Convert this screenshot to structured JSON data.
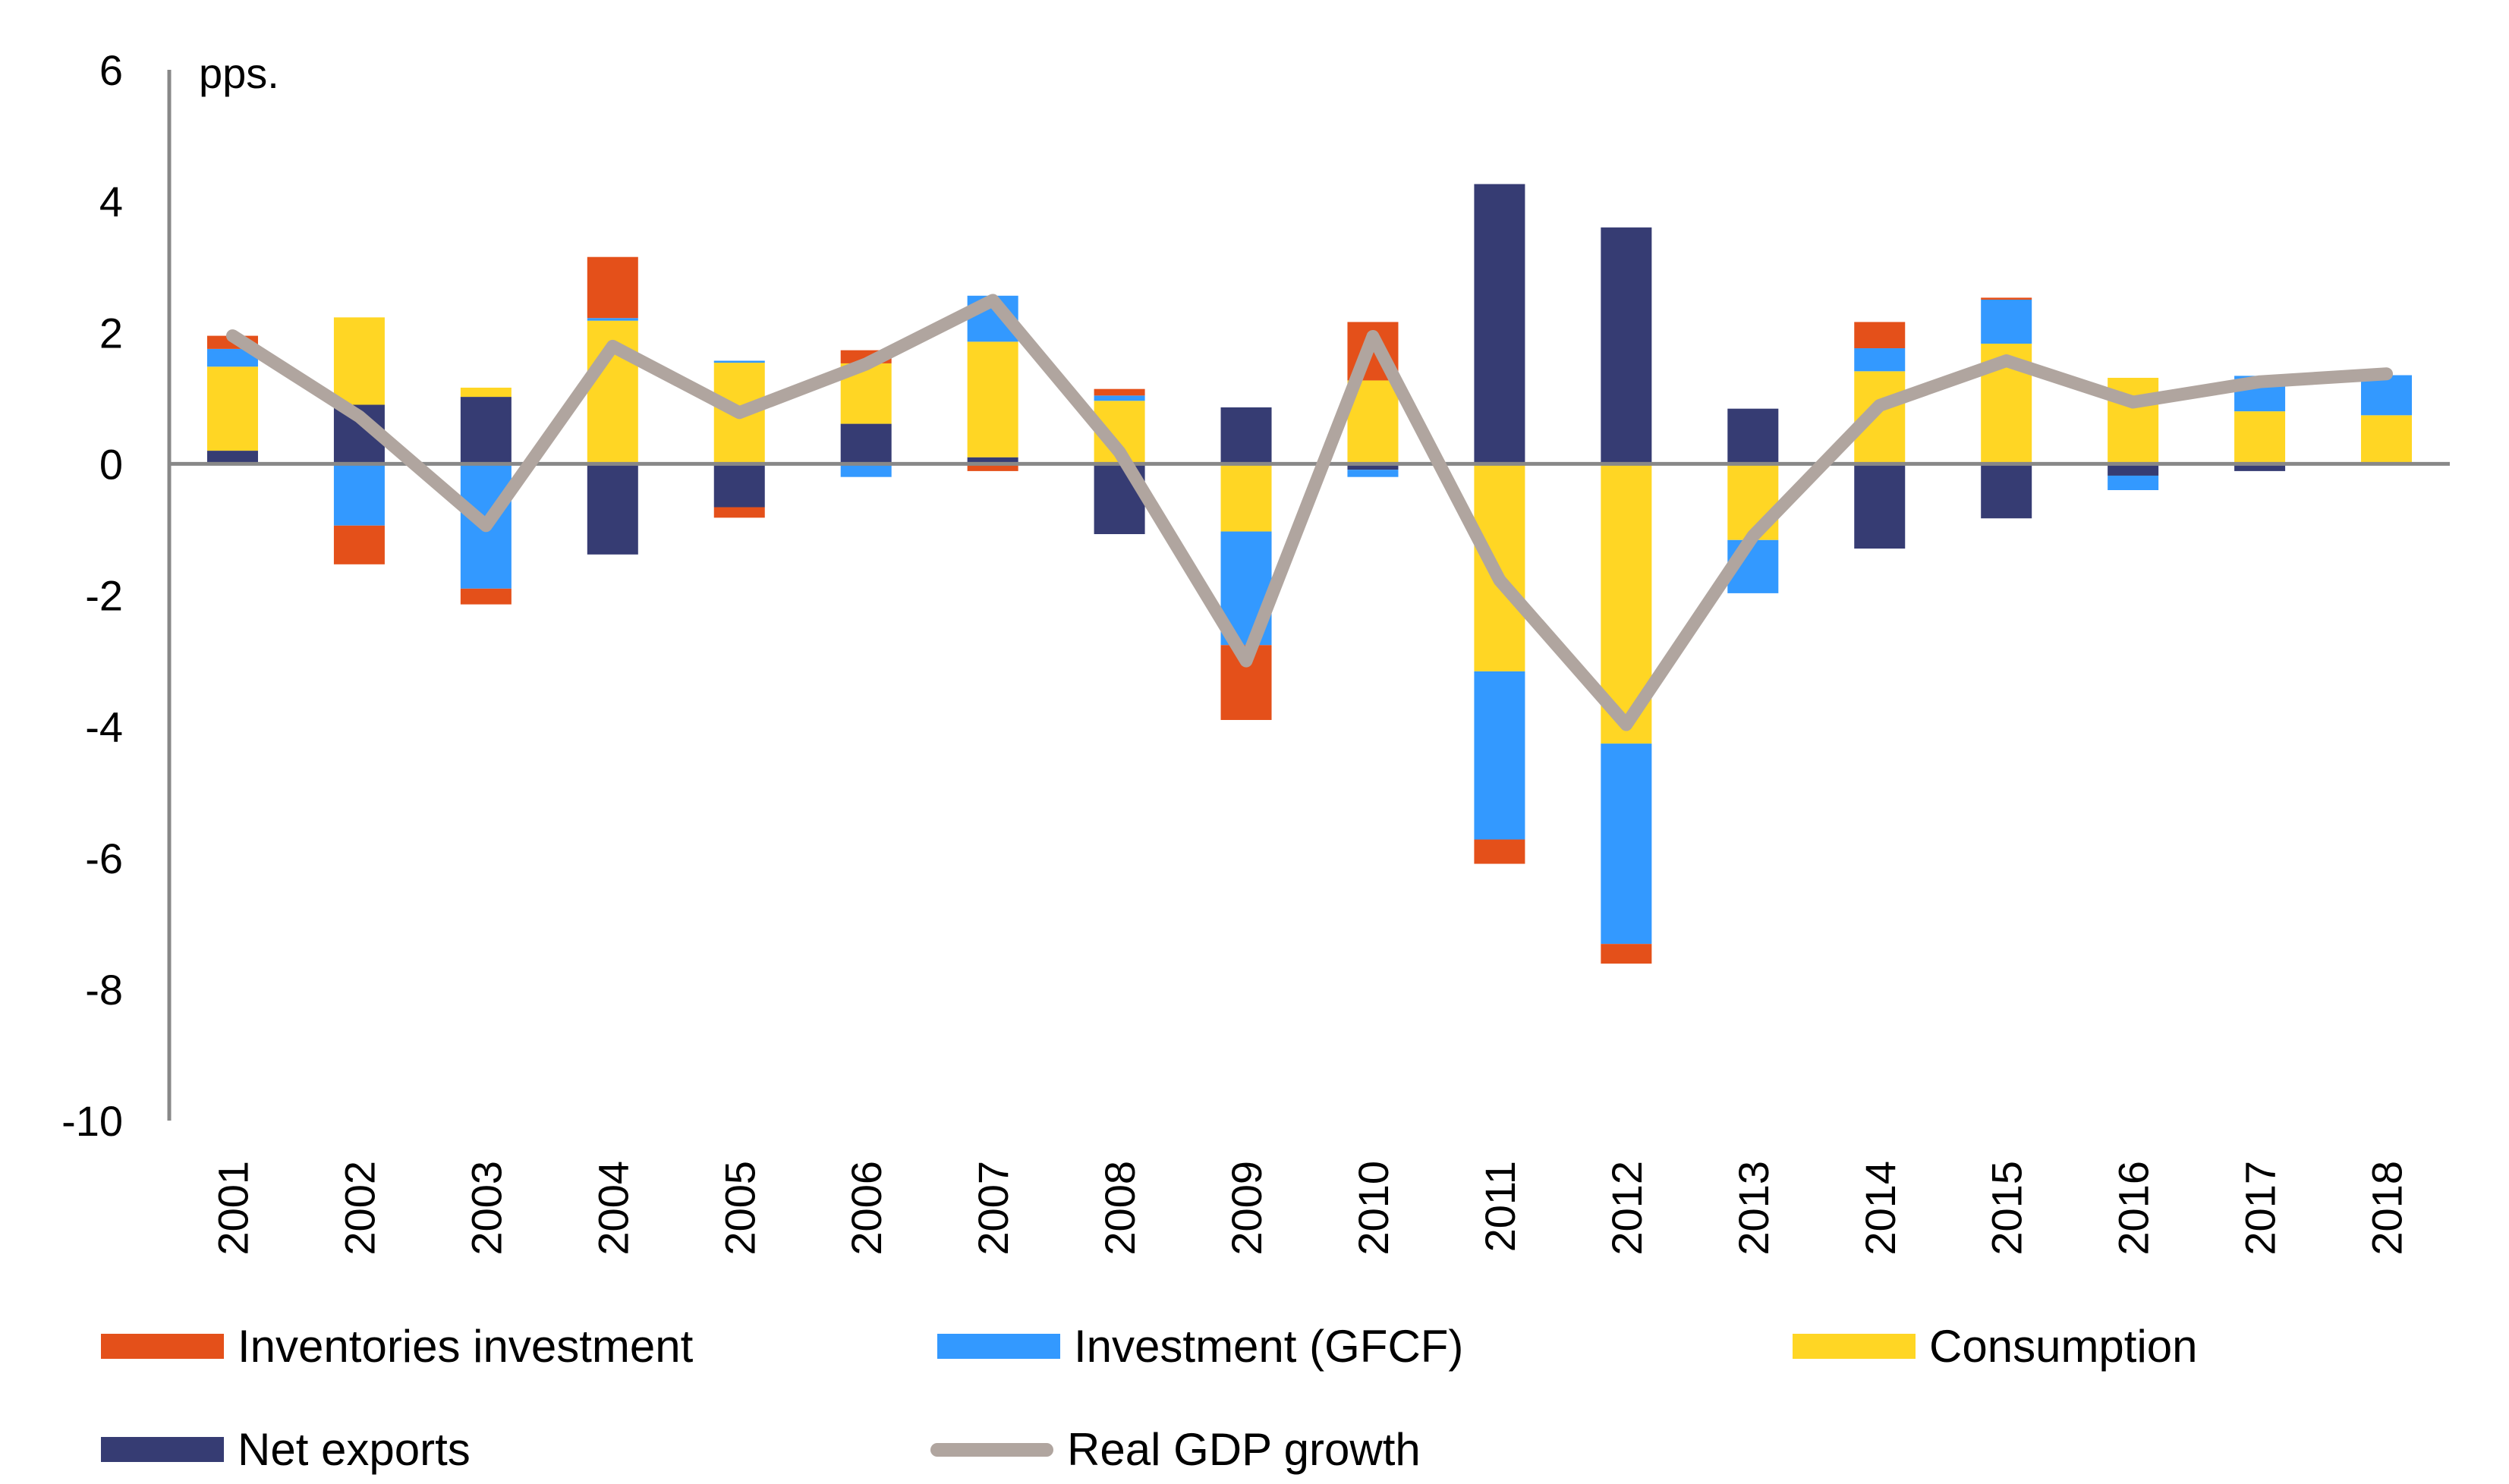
{
  "chart_data": {
    "type": "bar",
    "subtype": "stacked-bar-with-line",
    "title": "",
    "ylabel": "pps.",
    "xlabel": "",
    "ylim": [
      -10,
      6
    ],
    "yticks": [
      6,
      4,
      2,
      0,
      -2,
      -4,
      -6,
      -8,
      -10
    ],
    "grid": false,
    "legend_position": "bottom",
    "categories": [
      "2001",
      "2002",
      "2003",
      "2004",
      "2005",
      "2006",
      "2007",
      "2008",
      "2009",
      "2010",
      "2011",
      "2012",
      "2013",
      "2014",
      "2015",
      "2016",
      "2017",
      "2018"
    ],
    "series": [
      {
        "name": "Inventories investment",
        "kind": "bar",
        "color": "#E4501A",
        "values": [
          0.2,
          -0.59,
          -0.24,
          0.93,
          -0.16,
          0.2,
          -0.11,
          0.1,
          -1.14,
          0.89,
          -0.37,
          -0.3,
          0.0,
          0.4,
          0.03,
          0.0,
          0.0,
          0.0
        ]
      },
      {
        "name": "Investment (GFCF)",
        "kind": "bar",
        "color": "#3399FF",
        "values": [
          0.27,
          -0.94,
          -1.9,
          0.04,
          0.03,
          -0.2,
          0.7,
          0.08,
          -1.73,
          -0.11,
          -2.56,
          -3.05,
          -0.81,
          0.35,
          0.67,
          -0.22,
          0.54,
          0.61
        ]
      },
      {
        "name": "Consumption",
        "kind": "bar",
        "color": "#FFD624",
        "values": [
          1.28,
          1.33,
          0.14,
          2.18,
          1.54,
          0.92,
          1.76,
          0.96,
          -1.03,
          1.27,
          -3.16,
          -4.26,
          -1.16,
          1.41,
          1.83,
          1.31,
          0.8,
          0.74
        ]
      },
      {
        "name": "Net exports",
        "kind": "bar",
        "color": "#363C73",
        "values": [
          0.2,
          0.9,
          1.02,
          -1.38,
          -0.66,
          0.61,
          0.1,
          -1.07,
          0.86,
          -0.09,
          4.26,
          3.6,
          0.84,
          -1.29,
          -0.83,
          -0.18,
          -0.11,
          0.0
        ]
      },
      {
        "name": "Real GDP growth",
        "kind": "line",
        "color": "#B0A59F",
        "values": [
          1.95,
          0.72,
          -0.94,
          1.79,
          0.78,
          1.52,
          2.49,
          0.18,
          -3.0,
          1.94,
          -1.77,
          -3.97,
          -1.1,
          0.89,
          1.57,
          0.94,
          1.25,
          1.37
        ]
      }
    ]
  },
  "legend": {
    "items": [
      {
        "label": "Inventories investment",
        "color": "#E4501A",
        "kind": "bar"
      },
      {
        "label": "Investment (GFCF)",
        "color": "#3399FF",
        "kind": "bar"
      },
      {
        "label": "Consumption",
        "color": "#FFD624",
        "kind": "bar"
      },
      {
        "label": "Net exports",
        "color": "#363C73",
        "kind": "bar"
      },
      {
        "label": "Real GDP growth",
        "color": "#B0A59F",
        "kind": "line"
      }
    ]
  },
  "axis_color": "#888888"
}
